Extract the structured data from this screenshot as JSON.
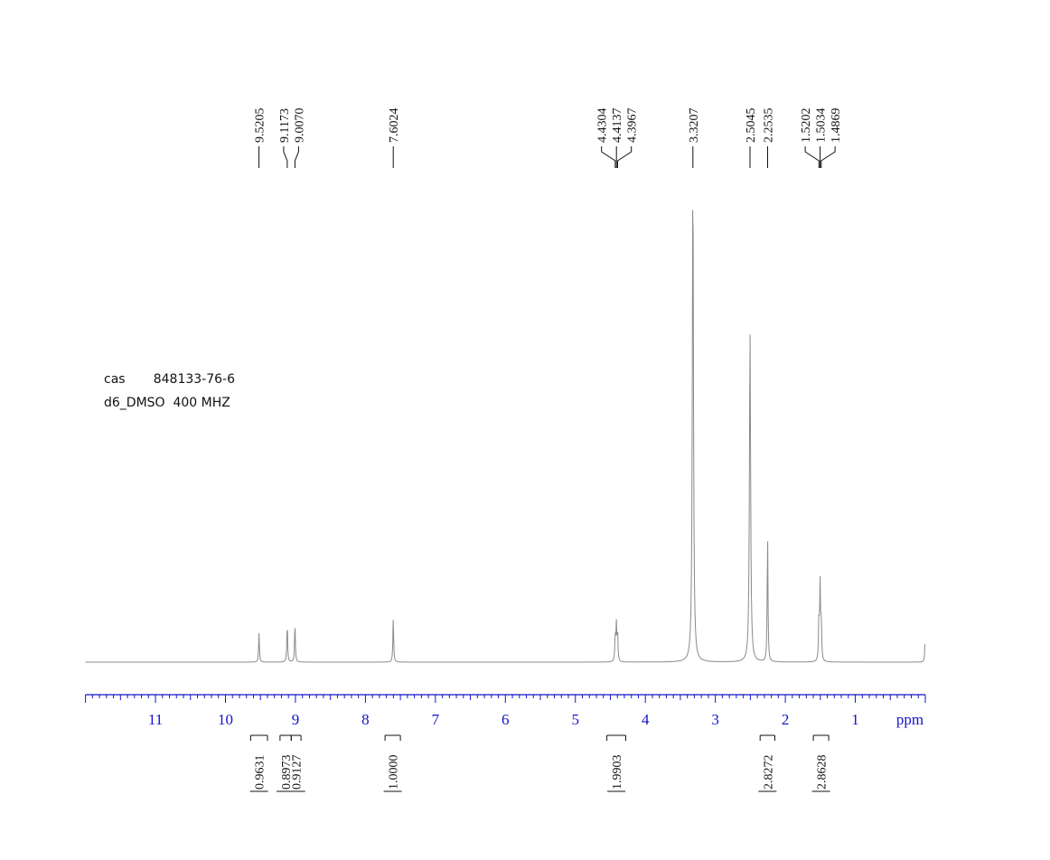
{
  "sample": {
    "cas_label": "cas",
    "cas_number": "848133-76-6",
    "solvent": "d6_DMSO",
    "frequency": "400 MHZ"
  },
  "colors": {
    "axis": "#1414c8",
    "spectrum": "#8a8a8a",
    "text": "#111111"
  },
  "chart_data": {
    "type": "line",
    "title": "",
    "xlabel": "ppm",
    "ylabel": "",
    "xlim": [
      12.0,
      0.0
    ],
    "x_reversed": true,
    "ticks": [
      11,
      10,
      9,
      8,
      7,
      6,
      5,
      4,
      3,
      2,
      1
    ],
    "tick_labels": [
      "11",
      "10",
      "9",
      "8",
      "7",
      "6",
      "5",
      "4",
      "3",
      "2",
      "1"
    ],
    "peak_labels": [
      "9.5205",
      "9.1173",
      "9.0070",
      "7.6024",
      "4.4304",
      "4.4137",
      "4.3967",
      "3.3207",
      "2.5045",
      "2.2535",
      "1.5202",
      "1.5034",
      "1.4869"
    ],
    "peaks": [
      {
        "ppm": 9.5205,
        "height": 0.06
      },
      {
        "ppm": 9.1173,
        "height": 0.08
      },
      {
        "ppm": 9.007,
        "height": 0.08
      },
      {
        "ppm": 7.6024,
        "height": 0.09
      },
      {
        "ppm": 4.4304,
        "height": 0.055
      },
      {
        "ppm": 4.4137,
        "height": 0.075
      },
      {
        "ppm": 4.3967,
        "height": 0.055
      },
      {
        "ppm": 3.3207,
        "height": 1.0
      },
      {
        "ppm": 2.5045,
        "height": 0.68
      },
      {
        "ppm": 2.2535,
        "height": 0.265
      },
      {
        "ppm": 1.5202,
        "height": 0.085
      },
      {
        "ppm": 1.5034,
        "height": 0.155
      },
      {
        "ppm": 1.4869,
        "height": 0.085
      },
      {
        "ppm": 0.0,
        "height": 0.06
      }
    ],
    "integrals": [
      {
        "label": "0.9631",
        "from": 9.64,
        "to": 9.4
      },
      {
        "label": "0.8973",
        "from": 9.22,
        "to": 9.06
      },
      {
        "label": "0.9127",
        "from": 9.06,
        "to": 8.92
      },
      {
        "label": "1.0000",
        "from": 7.72,
        "to": 7.5
      },
      {
        "label": "1.9903",
        "from": 4.55,
        "to": 4.28
      },
      {
        "label": "2.8272",
        "from": 2.36,
        "to": 2.15
      },
      {
        "label": "2.8628",
        "from": 1.6,
        "to": 1.38
      }
    ]
  }
}
